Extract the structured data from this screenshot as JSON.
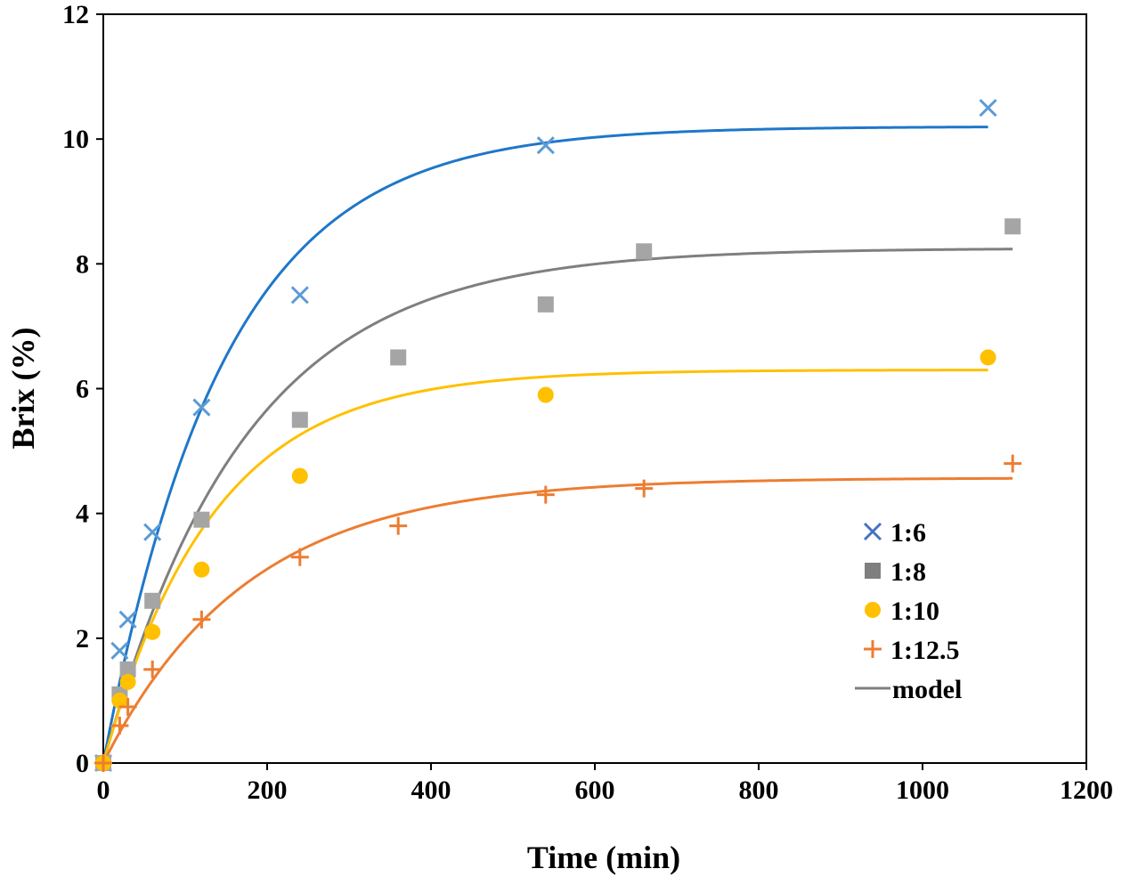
{
  "chart_data": {
    "type": "scatter",
    "title": "",
    "xlabel": "Time (min)",
    "ylabel": "Brix (%)",
    "xlim": [
      0,
      1200
    ],
    "ylim": [
      0,
      12
    ],
    "xticks": [
      0,
      200,
      400,
      600,
      800,
      1000,
      1200
    ],
    "yticks": [
      0,
      2,
      4,
      6,
      8,
      10,
      12
    ],
    "grid": false,
    "legend_position": "right",
    "series": [
      {
        "name": "1:6",
        "marker": "x",
        "color": "#5B9BD5",
        "x": [
          0,
          20,
          30,
          60,
          120,
          240,
          540,
          1080
        ],
        "y": [
          0,
          1.8,
          2.3,
          3.7,
          5.7,
          7.5,
          9.9,
          10.5
        ]
      },
      {
        "name": "1:8",
        "marker": "square",
        "color": "#A5A5A5",
        "x": [
          0,
          20,
          30,
          60,
          120,
          240,
          360,
          540,
          660,
          1110
        ],
        "y": [
          0,
          1.1,
          1.5,
          2.6,
          3.9,
          5.5,
          6.5,
          7.35,
          8.2,
          8.6
        ]
      },
      {
        "name": "1:10",
        "marker": "circle",
        "color": "#FFC000",
        "x": [
          0,
          20,
          30,
          60,
          120,
          240,
          540,
          1080
        ],
        "y": [
          0,
          1.0,
          1.3,
          2.1,
          3.1,
          4.6,
          5.9,
          6.5
        ]
      },
      {
        "name": "1:12.5",
        "marker": "plus",
        "color": "#ED7D31",
        "x": [
          0,
          20,
          30,
          60,
          120,
          240,
          360,
          540,
          660,
          1110
        ],
        "y": [
          0,
          0.6,
          0.9,
          1.5,
          2.3,
          3.3,
          3.8,
          4.3,
          4.4,
          4.8
        ]
      }
    ],
    "model_curves": [
      {
        "color": "#1F77C9",
        "cmax": 10.2,
        "k": 0.0068,
        "x_end": 1080
      },
      {
        "color": "#7F7F7F",
        "cmax": 8.25,
        "k": 0.0058,
        "x_end": 1110
      },
      {
        "color": "#FFC000",
        "cmax": 6.3,
        "k": 0.0075,
        "x_end": 1080
      },
      {
        "color": "#ED7D31",
        "cmax": 4.57,
        "k": 0.0057,
        "x_end": 1110
      }
    ],
    "legend": [
      {
        "label": "1:6",
        "marker": "x",
        "color": "#4472C4"
      },
      {
        "label": "1:8",
        "marker": "square",
        "color": "#7F7F7F"
      },
      {
        "label": "1:10",
        "marker": "circle",
        "color": "#FFC000"
      },
      {
        "label": "1:12.5",
        "marker": "plus",
        "color": "#ED7D31"
      },
      {
        "label": "model",
        "marker": "line",
        "color": "#7F7F7F"
      }
    ]
  }
}
